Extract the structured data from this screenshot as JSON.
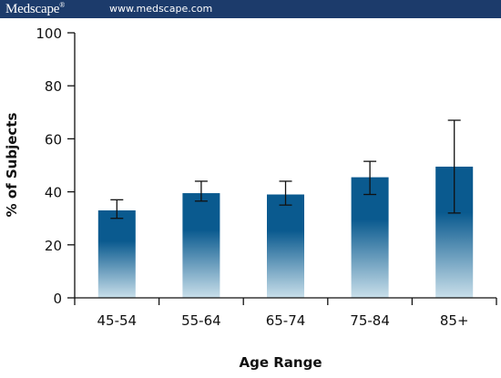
{
  "header": {
    "brand": "Medscape",
    "brand_mark": "®",
    "url": "www.medscape.com"
  },
  "colors": {
    "header_bg": "#1c3b6b",
    "bar_top": "#0a5a8f",
    "bar_bottom": "#c9dfea"
  },
  "chart_data": {
    "type": "bar",
    "categories": [
      "45-54",
      "55-64",
      "65-74",
      "75-84",
      "85+"
    ],
    "values": [
      33,
      39.5,
      39,
      45.5,
      49.5
    ],
    "error_low": [
      30,
      36.5,
      35,
      39,
      32
    ],
    "error_high": [
      37,
      44,
      44,
      51.5,
      67
    ],
    "xlabel": "Age Range",
    "ylabel": "% of Subjects",
    "ylim": [
      0,
      100
    ],
    "yticks": [
      0,
      20,
      40,
      60,
      80,
      100
    ],
    "grid": false
  }
}
